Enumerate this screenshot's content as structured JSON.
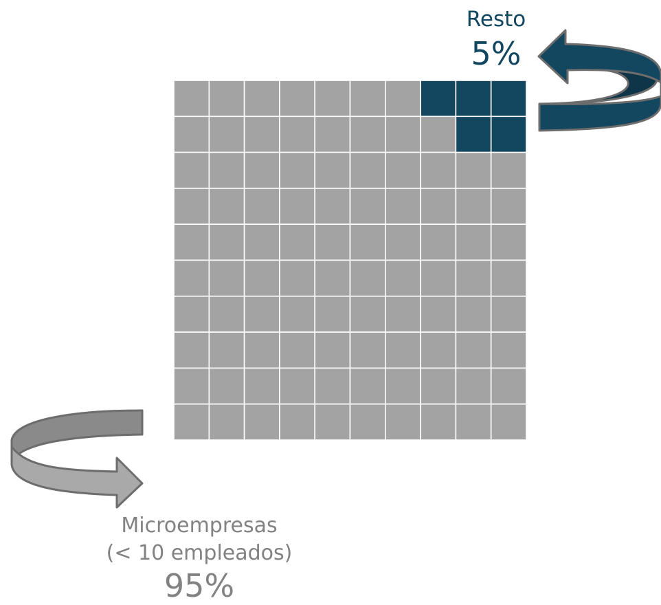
{
  "chart_data": {
    "type": "waffle",
    "grid": {
      "rows": 10,
      "cols": 10
    },
    "colors": {
      "resto": "#134760",
      "microempresas": "#a3a3a3",
      "cell_border": "#ffffff",
      "arrow_dark": "#134760",
      "arrow_dark_side": "#0e3548",
      "arrow_gray": "#a9a9a9",
      "arrow_gray_side": "#8a8a8a",
      "arrow_outline": "#6d6d6d",
      "text_dark": "#134760",
      "text_gray": "#828282"
    },
    "series": [
      {
        "key": "resto",
        "label": "Resto",
        "value_label": "5%",
        "value": 5,
        "cells": [
          [
            0,
            7
          ],
          [
            0,
            8
          ],
          [
            0,
            9
          ],
          [
            1,
            8
          ],
          [
            1,
            9
          ]
        ]
      },
      {
        "key": "microempresas",
        "label": "Microempresas",
        "sublabel": "(< 10 empleados)",
        "value_label": "95%",
        "value": 95
      }
    ]
  }
}
